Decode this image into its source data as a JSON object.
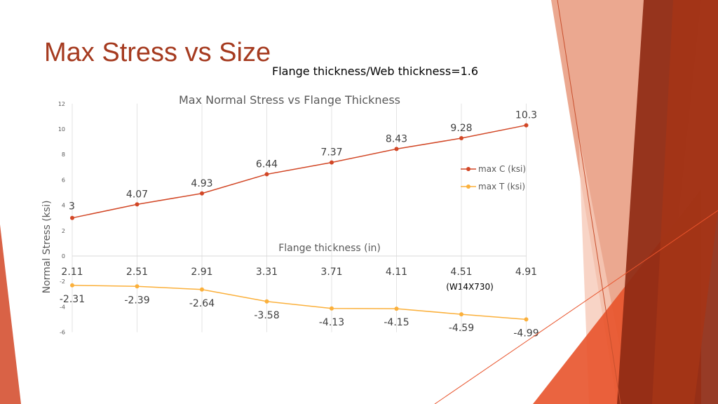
{
  "slide": {
    "title": "Max Stress vs Size",
    "subtitle": "Flange thickness/Web thickness=1.6"
  },
  "chart_data": {
    "type": "line",
    "title": "Max Normal Stress vs Flange Thickness",
    "xlabel": "Flange thickness (in)",
    "ylabel": "Normal Stress (ksi)",
    "categories": [
      "2.11",
      "2.51",
      "2.91",
      "3.31",
      "3.71",
      "4.11",
      "4.51",
      "4.91"
    ],
    "series": [
      {
        "name": "max C (ksi)",
        "values": [
          3,
          4.07,
          4.93,
          6.44,
          7.37,
          8.43,
          9.28,
          10.3
        ],
        "color": "#D24726"
      },
      {
        "name": "max T (ksi)",
        "values": [
          -2.31,
          -2.39,
          -2.64,
          -3.58,
          -4.13,
          -4.15,
          -4.59,
          -4.99
        ],
        "color": "#FBB03B"
      }
    ],
    "ylim": [
      -6,
      12
    ],
    "yticks": [
      -6,
      -4,
      -2,
      0,
      2,
      4,
      6,
      8,
      10,
      12
    ],
    "grid": "vertical",
    "legend": "right",
    "annotation": "(W14X730)"
  }
}
